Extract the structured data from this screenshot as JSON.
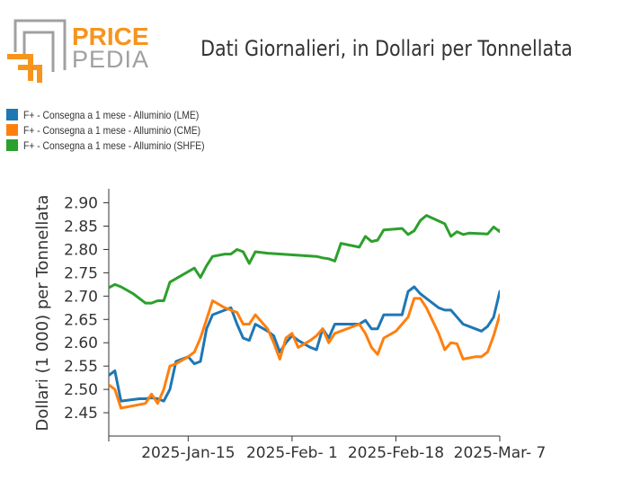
{
  "brand": {
    "word1": "PRICE",
    "word2": "PEDIA",
    "colors": {
      "orange": "#f7941d",
      "gray": "#a0a0a0"
    }
  },
  "chart_data": {
    "type": "line",
    "title": "Dati Giornalieri, in Dollari per Tonnellata",
    "ylabel": "Dollari (1 000) per Tonnellata",
    "xlabel": "",
    "ylim": [
      2.4,
      2.93
    ],
    "yticks": [
      2.45,
      2.5,
      2.55,
      2.6,
      2.65,
      2.7,
      2.75,
      2.8,
      2.85,
      2.9
    ],
    "ytick_labels": [
      "2.45",
      "2.50",
      "2.55",
      "2.60",
      "2.65",
      "2.70",
      "2.75",
      "2.80",
      "2.85",
      "2.90"
    ],
    "xlim": [
      "2025-01-02",
      "2025-03-07"
    ],
    "xticks": [
      "2025-01-15",
      "2025-02-01",
      "2025-02-18",
      "2025-03-07"
    ],
    "xtick_labels": [
      "2025-Jan-15",
      "2025-Feb- 1",
      "2025-Feb-18",
      "2025-Mar- 7"
    ],
    "grid": false,
    "legend_position": "top-left",
    "series": [
      {
        "name": "F+ - Consegna a 1 mese - Alluminio (LME)",
        "color": "#1f77b4",
        "points": [
          [
            "2025-01-02",
            2.53
          ],
          [
            "2025-01-03",
            2.54
          ],
          [
            "2025-01-04",
            2.475
          ],
          [
            "2025-01-07",
            2.48
          ],
          [
            "2025-01-08",
            2.48
          ],
          [
            "2025-01-09",
            2.482
          ],
          [
            "2025-01-10",
            2.48
          ],
          [
            "2025-01-11",
            2.475
          ],
          [
            "2025-01-12",
            2.5
          ],
          [
            "2025-01-13",
            2.56
          ],
          [
            "2025-01-14",
            2.565
          ],
          [
            "2025-01-15",
            2.57
          ],
          [
            "2025-01-16",
            2.555
          ],
          [
            "2025-01-17",
            2.56
          ],
          [
            "2025-01-18",
            2.63
          ],
          [
            "2025-01-19",
            2.66
          ],
          [
            "2025-01-21",
            2.67
          ],
          [
            "2025-01-22",
            2.675
          ],
          [
            "2025-01-23",
            2.64
          ],
          [
            "2025-01-24",
            2.61
          ],
          [
            "2025-01-25",
            2.605
          ],
          [
            "2025-01-26",
            2.64
          ],
          [
            "2025-01-28",
            2.625
          ],
          [
            "2025-01-29",
            2.615
          ],
          [
            "2025-01-30",
            2.58
          ],
          [
            "2025-01-31",
            2.6
          ],
          [
            "2025-02-01",
            2.615
          ],
          [
            "2025-02-02",
            2.605
          ],
          [
            "2025-02-04",
            2.59
          ],
          [
            "2025-02-05",
            2.585
          ],
          [
            "2025-02-06",
            2.63
          ],
          [
            "2025-02-07",
            2.61
          ],
          [
            "2025-02-08",
            2.64
          ],
          [
            "2025-02-09",
            2.64
          ],
          [
            "2025-02-11",
            2.64
          ],
          [
            "2025-02-12",
            2.64
          ],
          [
            "2025-02-13",
            2.648
          ],
          [
            "2025-02-14",
            2.63
          ],
          [
            "2025-02-15",
            2.63
          ],
          [
            "2025-02-16",
            2.66
          ],
          [
            "2025-02-18",
            2.66
          ],
          [
            "2025-02-19",
            2.66
          ],
          [
            "2025-02-20",
            2.71
          ],
          [
            "2025-02-21",
            2.72
          ],
          [
            "2025-02-22",
            2.705
          ],
          [
            "2025-02-23",
            2.695
          ],
          [
            "2025-02-25",
            2.675
          ],
          [
            "2025-02-26",
            2.67
          ],
          [
            "2025-02-27",
            2.67
          ],
          [
            "2025-02-28",
            2.655
          ],
          [
            "2025-03-01",
            2.64
          ],
          [
            "2025-03-03",
            2.63
          ],
          [
            "2025-03-04",
            2.625
          ],
          [
            "2025-03-05",
            2.635
          ],
          [
            "2025-03-06",
            2.655
          ],
          [
            "2025-03-07",
            2.71
          ],
          [
            "2025-03-08",
            2.7
          ]
        ]
      },
      {
        "name": "F+ - Consegna a 1 mese - Alluminio (CME)",
        "color": "#ff7f0e",
        "points": [
          [
            "2025-01-02",
            2.51
          ],
          [
            "2025-01-03",
            2.5
          ],
          [
            "2025-01-04",
            2.46
          ],
          [
            "2025-01-06",
            2.465
          ],
          [
            "2025-01-08",
            2.47
          ],
          [
            "2025-01-09",
            2.49
          ],
          [
            "2025-01-10",
            2.47
          ],
          [
            "2025-01-11",
            2.5
          ],
          [
            "2025-01-12",
            2.55
          ],
          [
            "2025-01-13",
            2.555
          ],
          [
            "2025-01-15",
            2.57
          ],
          [
            "2025-01-16",
            2.58
          ],
          [
            "2025-01-17",
            2.61
          ],
          [
            "2025-01-18",
            2.65
          ],
          [
            "2025-01-19",
            2.69
          ],
          [
            "2025-01-21",
            2.675
          ],
          [
            "2025-01-22",
            2.67
          ],
          [
            "2025-01-23",
            2.665
          ],
          [
            "2025-01-24",
            2.64
          ],
          [
            "2025-01-25",
            2.64
          ],
          [
            "2025-01-26",
            2.66
          ],
          [
            "2025-01-28",
            2.63
          ],
          [
            "2025-01-29",
            2.6
          ],
          [
            "2025-01-30",
            2.565
          ],
          [
            "2025-01-31",
            2.61
          ],
          [
            "2025-02-01",
            2.62
          ],
          [
            "2025-02-02",
            2.59
          ],
          [
            "2025-02-04",
            2.605
          ],
          [
            "2025-02-05",
            2.615
          ],
          [
            "2025-02-06",
            2.63
          ],
          [
            "2025-02-07",
            2.6
          ],
          [
            "2025-02-08",
            2.62
          ],
          [
            "2025-02-11",
            2.635
          ],
          [
            "2025-02-12",
            2.64
          ],
          [
            "2025-02-13",
            2.62
          ],
          [
            "2025-02-14",
            2.59
          ],
          [
            "2025-02-15",
            2.575
          ],
          [
            "2025-02-16",
            2.61
          ],
          [
            "2025-02-18",
            2.625
          ],
          [
            "2025-02-19",
            2.64
          ],
          [
            "2025-02-20",
            2.655
          ],
          [
            "2025-02-21",
            2.695
          ],
          [
            "2025-02-22",
            2.695
          ],
          [
            "2025-02-23",
            2.675
          ],
          [
            "2025-02-25",
            2.62
          ],
          [
            "2025-02-26",
            2.585
          ],
          [
            "2025-02-27",
            2.6
          ],
          [
            "2025-02-28",
            2.598
          ],
          [
            "2025-03-01",
            2.565
          ],
          [
            "2025-03-03",
            2.57
          ],
          [
            "2025-03-04",
            2.57
          ],
          [
            "2025-03-05",
            2.58
          ],
          [
            "2025-03-06",
            2.615
          ],
          [
            "2025-03-07",
            2.66
          ],
          [
            "2025-03-08",
            2.665
          ]
        ]
      },
      {
        "name": "F+ - Consegna a 1 mese - Alluminio (SHFE)",
        "color": "#2ca02c",
        "points": [
          [
            "2025-01-02",
            2.718
          ],
          [
            "2025-01-03",
            2.725
          ],
          [
            "2025-01-04",
            2.72
          ],
          [
            "2025-01-06",
            2.705
          ],
          [
            "2025-01-08",
            2.685
          ],
          [
            "2025-01-09",
            2.685
          ],
          [
            "2025-01-10",
            2.69
          ],
          [
            "2025-01-11",
            2.69
          ],
          [
            "2025-01-12",
            2.73
          ],
          [
            "2025-01-16",
            2.76
          ],
          [
            "2025-01-17",
            2.74
          ],
          [
            "2025-01-18",
            2.765
          ],
          [
            "2025-01-19",
            2.785
          ],
          [
            "2025-01-21",
            2.79
          ],
          [
            "2025-01-22",
            2.79
          ],
          [
            "2025-01-23",
            2.8
          ],
          [
            "2025-01-24",
            2.795
          ],
          [
            "2025-01-25",
            2.77
          ],
          [
            "2025-01-26",
            2.795
          ],
          [
            "2025-01-28",
            2.792
          ],
          [
            "2025-02-05",
            2.785
          ],
          [
            "2025-02-06",
            2.782
          ],
          [
            "2025-02-07",
            2.78
          ],
          [
            "2025-02-08",
            2.775
          ],
          [
            "2025-02-09",
            2.813
          ],
          [
            "2025-02-12",
            2.805
          ],
          [
            "2025-02-13",
            2.828
          ],
          [
            "2025-02-14",
            2.817
          ],
          [
            "2025-02-15",
            2.82
          ],
          [
            "2025-02-16",
            2.842
          ],
          [
            "2025-02-19",
            2.845
          ],
          [
            "2025-02-20",
            2.832
          ],
          [
            "2025-02-21",
            2.84
          ],
          [
            "2025-02-22",
            2.862
          ],
          [
            "2025-02-23",
            2.873
          ],
          [
            "2025-02-26",
            2.855
          ],
          [
            "2025-02-27",
            2.828
          ],
          [
            "2025-02-28",
            2.838
          ],
          [
            "2025-03-01",
            2.832
          ],
          [
            "2025-03-02",
            2.835
          ],
          [
            "2025-03-05",
            2.833
          ],
          [
            "2025-03-06",
            2.848
          ],
          [
            "2025-03-07",
            2.838
          ],
          [
            "2025-03-08",
            2.872
          ],
          [
            "2025-03-09",
            2.885
          ]
        ]
      }
    ]
  }
}
